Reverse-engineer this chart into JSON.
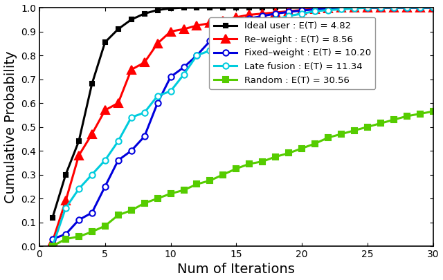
{
  "title": "",
  "xlabel": "Num of Iterations",
  "ylabel": "Cumulative Probability",
  "xlim": [
    0,
    30
  ],
  "ylim": [
    0,
    1.0
  ],
  "xticks": [
    0,
    5,
    10,
    15,
    20,
    25,
    30
  ],
  "yticks": [
    0,
    0.1,
    0.2,
    0.3,
    0.4,
    0.5,
    0.6,
    0.7,
    0.8,
    0.9,
    1.0
  ],
  "series": [
    {
      "label": "Ideal user : E(T) = 4.82",
      "color": "#000000",
      "linewidth": 2.2,
      "marker": "s",
      "markersize": 5,
      "markerfacecolor": "#000000",
      "markeredgecolor": "#000000",
      "x": [
        1,
        2,
        3,
        4,
        5,
        6,
        7,
        8,
        9,
        10,
        11,
        12,
        13,
        14,
        15,
        16,
        17,
        18,
        19,
        20,
        21,
        22,
        23,
        24,
        25,
        26,
        27,
        28,
        29,
        30
      ],
      "y": [
        0.12,
        0.3,
        0.44,
        0.68,
        0.855,
        0.91,
        0.95,
        0.975,
        0.99,
        0.997,
        1.0,
        1.0,
        1.0,
        1.0,
        1.0,
        1.0,
        1.0,
        1.0,
        1.0,
        1.0,
        1.0,
        1.0,
        1.0,
        1.0,
        1.0,
        1.0,
        1.0,
        1.0,
        1.0,
        1.0
      ]
    },
    {
      "label": "Re–weight : E(T) = 8.56",
      "color": "#ff0000",
      "linewidth": 2.2,
      "marker": "^",
      "markersize": 8,
      "markerfacecolor": "#ff0000",
      "markeredgecolor": "#ff0000",
      "x": [
        1,
        2,
        3,
        4,
        5,
        6,
        7,
        8,
        9,
        10,
        11,
        12,
        13,
        14,
        15,
        16,
        17,
        18,
        19,
        20,
        21,
        22,
        23,
        24,
        25,
        26,
        27,
        28,
        29,
        30
      ],
      "y": [
        0.02,
        0.19,
        0.38,
        0.47,
        0.57,
        0.6,
        0.74,
        0.77,
        0.85,
        0.9,
        0.91,
        0.925,
        0.935,
        0.945,
        0.96,
        0.97,
        0.975,
        0.98,
        0.985,
        0.99,
        0.995,
        0.998,
        1.0,
        1.0,
        1.0,
        1.0,
        1.0,
        1.0,
        1.0,
        1.0
      ]
    },
    {
      "label": "Fixed–weight : E(T) = 10.20",
      "color": "#0000dd",
      "linewidth": 2.2,
      "marker": "o",
      "markersize": 6,
      "markerfacecolor": "#ffffff",
      "markeredgecolor": "#0000dd",
      "x": [
        1,
        2,
        3,
        4,
        5,
        6,
        7,
        8,
        9,
        10,
        11,
        12,
        13,
        14,
        15,
        16,
        17,
        18,
        19,
        20,
        21,
        22,
        23,
        24,
        25,
        26,
        27,
        28,
        29,
        30
      ],
      "y": [
        0.03,
        0.05,
        0.11,
        0.14,
        0.25,
        0.36,
        0.4,
        0.46,
        0.6,
        0.71,
        0.75,
        0.8,
        0.86,
        0.9,
        0.935,
        0.955,
        0.965,
        0.975,
        0.982,
        0.988,
        0.993,
        0.996,
        1.0,
        1.0,
        1.0,
        1.0,
        1.0,
        1.0,
        1.0,
        1.0
      ]
    },
    {
      "label": "Late fusion : E(T) = 11.34",
      "color": "#00ccdd",
      "linewidth": 2.2,
      "marker": "o",
      "markersize": 6,
      "markerfacecolor": "#ffffff",
      "markeredgecolor": "#00ccdd",
      "x": [
        1,
        2,
        3,
        4,
        5,
        6,
        7,
        8,
        9,
        10,
        11,
        12,
        13,
        14,
        15,
        16,
        17,
        18,
        19,
        20,
        21,
        22,
        23,
        24,
        25,
        26,
        27,
        28,
        29,
        30
      ],
      "y": [
        0.0,
        0.16,
        0.24,
        0.3,
        0.36,
        0.44,
        0.54,
        0.56,
        0.63,
        0.65,
        0.72,
        0.8,
        0.82,
        0.85,
        0.87,
        0.9,
        0.93,
        0.95,
        0.965,
        0.975,
        0.985,
        0.99,
        0.993,
        0.997,
        1.0,
        1.0,
        1.0,
        1.0,
        1.0,
        1.0
      ]
    },
    {
      "label": "Random : E(T) = 30.56",
      "color": "#55cc00",
      "linewidth": 2.2,
      "marker": "s",
      "markersize": 6,
      "markerfacecolor": "#55cc00",
      "markeredgecolor": "#55cc00",
      "x": [
        1,
        2,
        3,
        4,
        5,
        6,
        7,
        8,
        9,
        10,
        11,
        12,
        13,
        14,
        15,
        16,
        17,
        18,
        19,
        20,
        21,
        22,
        23,
        24,
        25,
        26,
        27,
        28,
        29,
        30
      ],
      "y": [
        0.0,
        0.03,
        0.04,
        0.06,
        0.085,
        0.13,
        0.15,
        0.18,
        0.2,
        0.22,
        0.235,
        0.26,
        0.275,
        0.3,
        0.325,
        0.345,
        0.355,
        0.375,
        0.39,
        0.41,
        0.43,
        0.455,
        0.47,
        0.485,
        0.5,
        0.515,
        0.53,
        0.545,
        0.555,
        0.565
      ]
    }
  ],
  "legend_loc": "upper right",
  "legend_fontsize": 9.5,
  "axis_fontsize": 14,
  "tick_fontsize": 10,
  "background_color": "#ffffff"
}
